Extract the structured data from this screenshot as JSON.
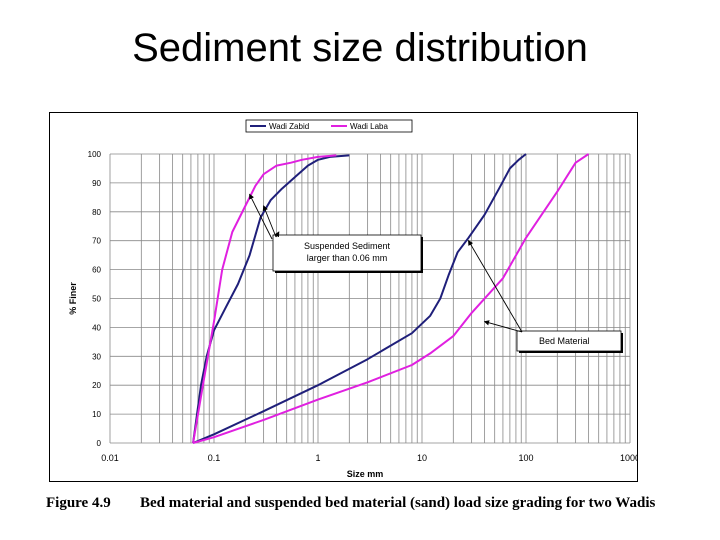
{
  "slide": {
    "title": "Sediment size distribution"
  },
  "caption": {
    "label": "Figure 4.9",
    "text": "Bed material and suspended bed material (sand) load size grading for two Wadis"
  },
  "chart_data": {
    "type": "line",
    "title": "",
    "xlabel": "Size mm",
    "ylabel": "% Finer",
    "x_scale": "log",
    "xlim": [
      0.01,
      1000
    ],
    "ylim": [
      0,
      100
    ],
    "x_ticks": [
      "0.01",
      "0.1",
      "1",
      "10",
      "100",
      "1000"
    ],
    "y_ticks": [
      "0",
      "10",
      "20",
      "30",
      "40",
      "50",
      "60",
      "70",
      "80",
      "90",
      "100"
    ],
    "grid": true,
    "legend_position": "top-center",
    "series": [
      {
        "name": "Wadi Zabid",
        "color": "#1f1f7a",
        "curves": [
          {
            "x": [
              0.063,
              0.075,
              0.085,
              0.1,
              0.13,
              0.17,
              0.22,
              0.28,
              0.35,
              0.45,
              0.6,
              0.8,
              1.0,
              1.3,
              2.0
            ],
            "y": [
              0,
              20,
              30,
              39,
              47,
              55,
              65,
              78,
              84,
              88,
              92,
              96,
              98,
              99,
              99.5
            ]
          },
          {
            "x": [
              0.063,
              0.1,
              0.3,
              1,
              3,
              8,
              12,
              15,
              18,
              22,
              28,
              40,
              55,
              70,
              85,
              100
            ],
            "y": [
              0,
              3,
              11,
              20,
              29,
              38,
              44,
              50,
              58,
              66,
              71,
              79,
              88,
              95,
              98,
              100
            ]
          }
        ]
      },
      {
        "name": "Wadi Laba",
        "color": "#e020e0",
        "curves": [
          {
            "x": [
              0.063,
              0.08,
              0.1,
              0.12,
              0.15,
              0.2,
              0.25,
              0.3,
              0.4,
              0.55,
              0.7,
              1.0,
              1.5
            ],
            "y": [
              0,
              22,
              42,
              60,
              73,
              82,
              89,
              93,
              96,
              97,
              98,
              99,
              99.5
            ]
          },
          {
            "x": [
              0.063,
              0.1,
              0.3,
              1,
              3,
              8,
              12,
              20,
              30,
              60,
              100,
              200,
              300,
              400
            ],
            "y": [
              0,
              2,
              8,
              15,
              21,
              27,
              31,
              37,
              45,
              57,
              71,
              87,
              97,
              100
            ]
          }
        ]
      }
    ],
    "annotations": [
      {
        "text": "Suspended Sediment larger than 0.06 mm",
        "arrows_to": [
          {
            "x": 0.3,
            "y": 82
          },
          {
            "x": 0.22,
            "y": 86
          },
          {
            "x": 0.42,
            "y": 73
          }
        ]
      },
      {
        "text": "Bed Material",
        "arrows_to": [
          {
            "x": 28,
            "y": 70
          },
          {
            "x": 40,
            "y": 42
          }
        ]
      }
    ]
  }
}
